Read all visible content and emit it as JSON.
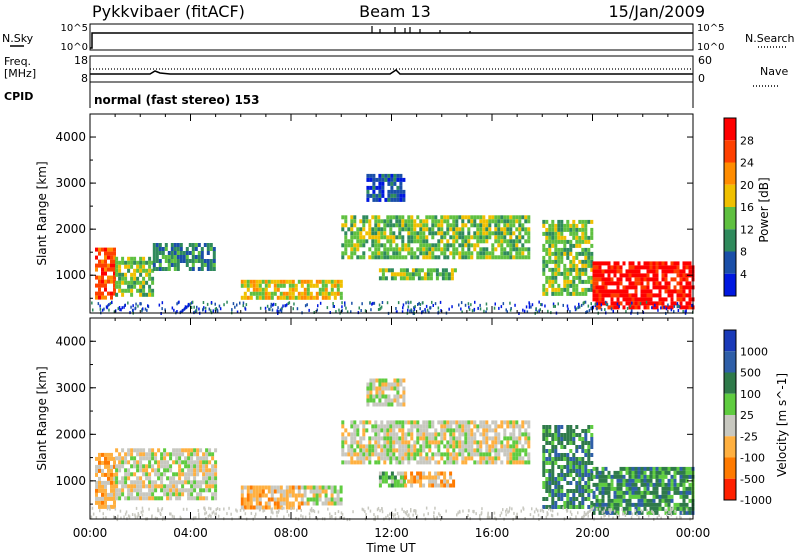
{
  "header": {
    "station": "Pykkvibaer (fitACF)",
    "beam": "Beam 13",
    "date": "15/Jan/2009"
  },
  "panels": {
    "nsky_label": "N.Sky",
    "nsky_top": "10^5",
    "nsky_bottom": "10^0",
    "nsearch_label": "N.Search",
    "nsearch_top": "10^5",
    "nsearch_bottom": "10^0",
    "freq_label": "Freq.",
    "freq_unit": "[MHz]",
    "freq_top": "18",
    "freq_bottom": "8",
    "nave_top": "60",
    "nave_bottom": "0",
    "nave_label": "Nave",
    "cpid_label": "CPID",
    "cpid_value": "normal (fast stereo) 153"
  },
  "chart_data": [
    {
      "type": "heatmap",
      "name": "power",
      "xlabel": "Time UT",
      "ylabel": "Slant Range [km]",
      "x_ticks": [
        "00:00",
        "04:00",
        "08:00",
        "12:00",
        "16:00",
        "20:00",
        "00:00"
      ],
      "x_range_hours": [
        0,
        24
      ],
      "y_ticks": [
        1000,
        2000,
        3000,
        4000
      ],
      "ylim": [
        180,
        4500
      ],
      "colorbar": {
        "label": "Power [dB]",
        "ticks": [
          "4",
          "8",
          "12",
          "16",
          "20",
          "24",
          "28"
        ],
        "colors": [
          "#0018e0",
          "#1a4fa8",
          "#2f8a5c",
          "#5fc040",
          "#f0c000",
          "#ff8c00",
          "#ff4000",
          "#ff0000"
        ]
      },
      "regions": [
        {
          "t0": 0.2,
          "t1": 1.0,
          "r0": 500,
          "r1": 1600,
          "level": 6
        },
        {
          "t0": 1.0,
          "t1": 2.5,
          "r0": 600,
          "r1": 1400,
          "level": 3
        },
        {
          "t0": 2.5,
          "t1": 5.0,
          "r0": 1100,
          "r1": 1700,
          "level": 2
        },
        {
          "t0": 6.0,
          "t1": 10.0,
          "r0": 500,
          "r1": 900,
          "level": 4
        },
        {
          "t0": 10.0,
          "t1": 17.5,
          "r0": 1400,
          "r1": 2300,
          "level": 3
        },
        {
          "t0": 11.5,
          "t1": 14.5,
          "r0": 950,
          "r1": 1150,
          "level": 3
        },
        {
          "t0": 11.0,
          "t1": 12.5,
          "r0": 2600,
          "r1": 3200,
          "level": 1
        },
        {
          "t0": 18.0,
          "t1": 20.0,
          "r0": 600,
          "r1": 2200,
          "level": 3
        },
        {
          "t0": 20.0,
          "t1": 24.0,
          "r0": 300,
          "r1": 1300,
          "level": 7
        }
      ]
    },
    {
      "type": "heatmap",
      "name": "velocity",
      "xlabel": "Time UT",
      "ylabel": "Slant Range [km]",
      "x_ticks": [
        "00:00",
        "04:00",
        "08:00",
        "12:00",
        "16:00",
        "20:00",
        "00:00"
      ],
      "x_range_hours": [
        0,
        24
      ],
      "y_ticks": [
        1000,
        2000,
        3000,
        4000
      ],
      "ylim": [
        180,
        4500
      ],
      "colorbar": {
        "label": "Velocity [m s^-1]",
        "ticks": [
          "1000",
          "500",
          "100",
          "25",
          "-25",
          "-100",
          "-500",
          "-1000"
        ],
        "colors": [
          "#1a3ab8",
          "#2f5fa8",
          "#2f7a4a",
          "#5fcc40",
          "#c8c8c0",
          "#ffb040",
          "#ff7a00",
          "#ff2000"
        ]
      },
      "regions": [
        {
          "t0": 0.2,
          "t1": 1.0,
          "r0": 400,
          "r1": 1600,
          "level": 5
        },
        {
          "t0": 1.0,
          "t1": 5.0,
          "r0": 600,
          "r1": 1700,
          "level": 4
        },
        {
          "t0": 6.0,
          "t1": 8.5,
          "r0": 400,
          "r1": 900,
          "level": 5
        },
        {
          "t0": 8.5,
          "t1": 10.0,
          "r0": 500,
          "r1": 900,
          "level": 4
        },
        {
          "t0": 10.0,
          "t1": 17.5,
          "r0": 1400,
          "r1": 2300,
          "level": 4
        },
        {
          "t0": 11.5,
          "t1": 12.5,
          "r0": 900,
          "r1": 1200,
          "level": 3
        },
        {
          "t0": 12.5,
          "t1": 14.5,
          "r0": 900,
          "r1": 1200,
          "level": 5
        },
        {
          "t0": 11.0,
          "t1": 12.5,
          "r0": 2600,
          "r1": 3200,
          "level": 4
        },
        {
          "t0": 18.0,
          "t1": 20.0,
          "r0": 400,
          "r1": 2200,
          "level": 2
        },
        {
          "t0": 20.0,
          "t1": 24.0,
          "r0": 300,
          "r1": 1300,
          "level": 2
        }
      ]
    }
  ]
}
